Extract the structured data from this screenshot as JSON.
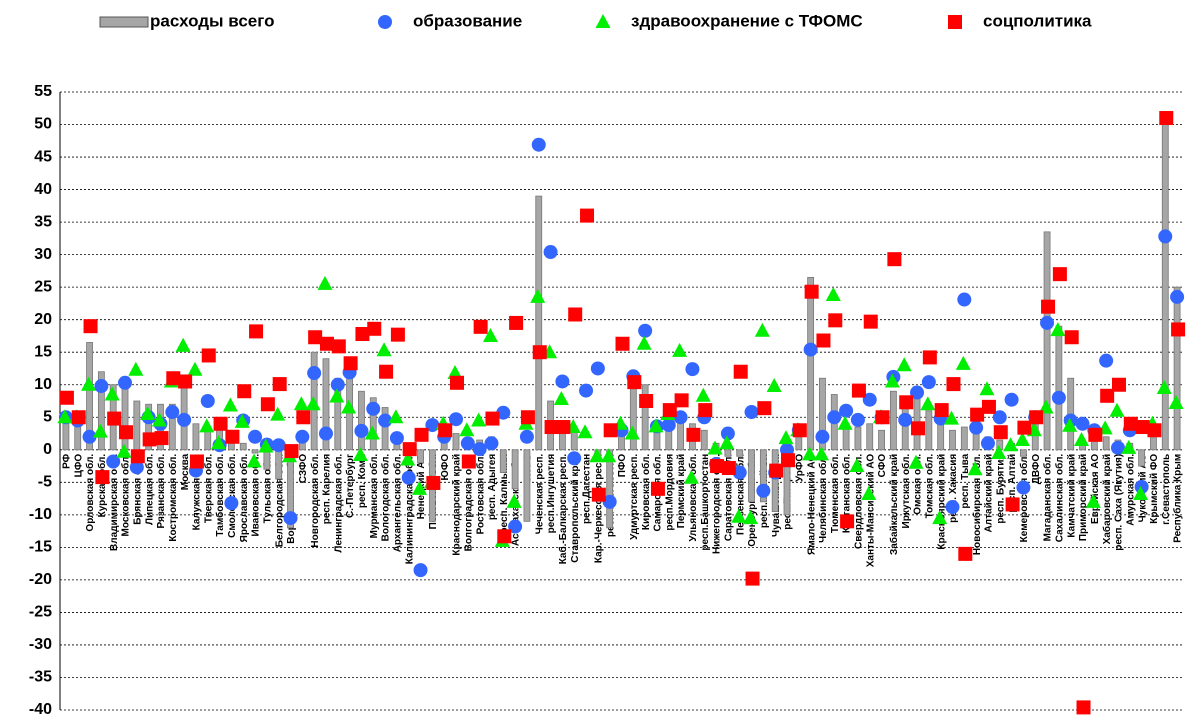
{
  "chart_data": {
    "type": "mixed",
    "categories": [
      "РФ",
      "ЦФО",
      "Орловская обл.",
      "Курская обл.",
      "Владимирская обл.",
      "Московская обл.",
      "Брянская обл.",
      "Липецкая обл.",
      "Рязанская обл.",
      "Костромская обл.",
      "Москва",
      "Калужская обл.",
      "Тверская обл.",
      "Тамбовская обл.",
      "Смоленская обл.",
      "Ярославская обл.",
      "Ивановская обл.",
      "Тульская обл.",
      "Белгородская обл.",
      "Воронежская обл.",
      "СЗФО",
      "Новгородская обл.",
      "респ. Карелия",
      "Ленинградская обл.",
      "С.-Петербург",
      "респ. Коми",
      "Мурманская обл.",
      "Вологодская обл.",
      "Архангельская обл.",
      "Калининградская обл.",
      "Ненецкий АО",
      "Псковская обл.",
      "ЮФО",
      "Краснодарский край",
      "Волгоградская обл.",
      "Ростовская обл.",
      "респ. Адыгея",
      "респ. Калмыкия",
      "Астраханская обл.",
      "СКФО",
      "Чеченская респ.",
      "респ.Ингушетия",
      "Каб.-Балкарская респ.",
      "Ставропольский край",
      "респ.Дагестан",
      "Кар.-Черкесская респ.",
      "респ.Сев.Осетия",
      "ПФО",
      "Удмуртская респ.",
      "Кировская обл.",
      "Самарская обл.",
      "респ.Мордовия",
      "Пермский край",
      "Ульяновская обл.",
      "респ.Башкортостан",
      "Нижегородская обл.",
      "Саратовская обл.",
      "Пензенская обл.",
      "Оренбургская обл.",
      "респ.Марий Эл",
      "Чувашская респ.",
      "респ.Татарстан",
      "УрФО",
      "Ямало-Ненецкий АО",
      "Челябинская обл.",
      "Тюменская обл.",
      "Курганская обл.",
      "Свердловская обл.",
      "Ханты-Мансийский АО",
      "СФО",
      "Забайкальский край",
      "Иркутская обл.",
      "Омская обл.",
      "Томская обл.",
      "Красноярский край",
      "респ. Хакасия",
      "респ. Тыва",
      "Новосибирская обл.",
      "Алтайский край",
      "респ. Бурятия",
      "респ. Алтай",
      "Кемеровская обл.",
      "ДВФО",
      "Магаданская обл.",
      "Сахалинская обл.",
      "Камчатский край",
      "Приморский край",
      "Еврейская АО",
      "Хабаровский край",
      "респ. Саха (Якутия)",
      "Амурская обл.",
      "Чукотский АО",
      "Крымский ФО",
      "г.Севастополь",
      "Республика Крым"
    ],
    "series": [
      {
        "name": "расходы всего",
        "marker": "bar",
        "color": "#a6a6a6",
        "values": [
          5,
          5,
          16.5,
          12,
          10,
          9.5,
          7.5,
          7,
          7,
          7,
          10,
          4,
          3.5,
          3,
          2,
          1,
          -0.5,
          -3,
          -4.5,
          -12,
          2,
          15,
          14,
          11,
          12.5,
          9,
          8,
          6.5,
          2,
          -1,
          -2,
          -11,
          2.5,
          2.5,
          1.5,
          1.5,
          2,
          -3.5,
          -6,
          -11,
          39,
          7.5,
          3,
          3,
          0,
          -1,
          -12,
          4,
          11,
          10,
          4,
          4,
          5,
          4,
          3,
          1,
          -1,
          -1,
          -8,
          -8,
          -9.5,
          -10,
          2,
          26.5,
          11,
          8.5,
          4,
          3.5,
          4,
          3,
          9,
          8,
          8.5,
          6,
          5,
          3,
          3.5,
          3,
          2,
          1.5,
          1,
          -1,
          4,
          33.5,
          19,
          11,
          1.5,
          3,
          2,
          1.5,
          1,
          -2.5,
          3,
          51,
          25
        ]
      },
      {
        "name": "образование",
        "marker": "circle",
        "color": "#3366ff",
        "values": [
          5,
          4.5,
          2,
          9.8,
          -1.8,
          10.3,
          -2.7,
          5,
          4,
          5.8,
          4.6,
          -3.2,
          7.5,
          0.7,
          -8.2,
          4.5,
          2,
          0.8,
          0.7,
          -10.5,
          2,
          11.8,
          2.5,
          10,
          11.9,
          2.9,
          6.3,
          4.5,
          1.8,
          -4.3,
          -18.5,
          3.8,
          2,
          4.7,
          1,
          0.1,
          1,
          5.7,
          -11.8,
          2,
          46.9,
          30.4,
          10.5,
          -1.3,
          9.1,
          12.5,
          -8,
          3,
          11.3,
          18.3,
          3.6,
          3.8,
          5,
          12.4,
          5,
          -2.2,
          2.5,
          -3.5,
          5.8,
          -6.3,
          -3.5,
          0,
          3,
          15.4,
          2,
          5,
          6,
          4.6,
          7.7,
          5,
          11.2,
          4.6,
          8.8,
          10.4,
          4.8,
          -8.8,
          23.1,
          3.4,
          1,
          5,
          7.7,
          -5.8,
          5,
          19.5,
          8,
          4.5,
          4,
          3,
          13.7,
          0.3,
          3,
          -5.7,
          3,
          32.8,
          23.5
        ]
      },
      {
        "name": "здравоохранение с ТФОМС",
        "marker": "triangle",
        "color": "#00ee00",
        "values": [
          5,
          5,
          10,
          2.8,
          8.5,
          -0.3,
          12.3,
          5.5,
          4.5,
          10.5,
          16,
          12.3,
          3.6,
          1,
          6.8,
          4.3,
          -1.8,
          0.5,
          5.4,
          -1,
          7,
          7,
          25.5,
          8.2,
          6.5,
          -0.8,
          2.5,
          15.3,
          5,
          -1.5,
          -6,
          -5,
          4,
          11.8,
          3,
          4.5,
          17.5,
          -14,
          -8,
          4,
          23.5,
          15,
          7.8,
          3.5,
          2.7,
          -1,
          -1,
          4,
          2.5,
          16.3,
          3.6,
          5.5,
          15.2,
          -4.3,
          8.3,
          0.2,
          1,
          -10.3,
          -10.5,
          18.3,
          9.8,
          1.8,
          3,
          -0.7,
          -0.7,
          23.8,
          4,
          -2.5,
          -6.8,
          5,
          10.5,
          13,
          -2,
          7,
          -10.5,
          4.8,
          13.2,
          -3,
          9.3,
          -0.5,
          0.7,
          1.5,
          3,
          6.5,
          18.4,
          3.7,
          1.5,
          -8,
          3.3,
          6,
          0.3,
          -6.8,
          4,
          9.5,
          7.2
        ]
      },
      {
        "name": "соцполитика",
        "marker": "square",
        "color": "#ff0000",
        "values": [
          8,
          5,
          19,
          -4.2,
          4.8,
          2.7,
          -1,
          1.6,
          1.8,
          11,
          10.5,
          -1.8,
          14.5,
          4,
          2,
          9,
          18.2,
          7,
          10.1,
          -0.2,
          5,
          17.3,
          16.3,
          15.9,
          13.3,
          17.8,
          18.6,
          12,
          17.7,
          0.1,
          2.3,
          -5.1,
          3,
          10.3,
          -1.8,
          18.9,
          4.8,
          -13.3,
          19.5,
          5,
          15,
          3.5,
          3.5,
          20.8,
          36,
          -6.9,
          3,
          16.3,
          10.4,
          7.5,
          -6,
          6.1,
          7.6,
          2.3,
          6.1,
          -2.5,
          -2.8,
          12,
          -19.8,
          6.4,
          -3.2,
          -1.6,
          3,
          24.3,
          16.8,
          19.9,
          -11,
          9.1,
          19.7,
          5,
          29.3,
          7.3,
          3.3,
          14.2,
          6.1,
          10.1,
          -16,
          5.4,
          6.6,
          2.7,
          -8.4,
          3.4,
          5,
          22,
          27,
          17.3,
          -39.6,
          2.3,
          8.3,
          10,
          4,
          3.5,
          3,
          51,
          18.5
        ]
      }
    ],
    "ylim": [
      -40,
      55
    ],
    "yticks": [
      55,
      50,
      45,
      40,
      35,
      30,
      25,
      20,
      15,
      10,
      5,
      0,
      -5,
      -10,
      -15,
      -20,
      -25,
      -30,
      -35,
      -40
    ],
    "grid": true
  }
}
